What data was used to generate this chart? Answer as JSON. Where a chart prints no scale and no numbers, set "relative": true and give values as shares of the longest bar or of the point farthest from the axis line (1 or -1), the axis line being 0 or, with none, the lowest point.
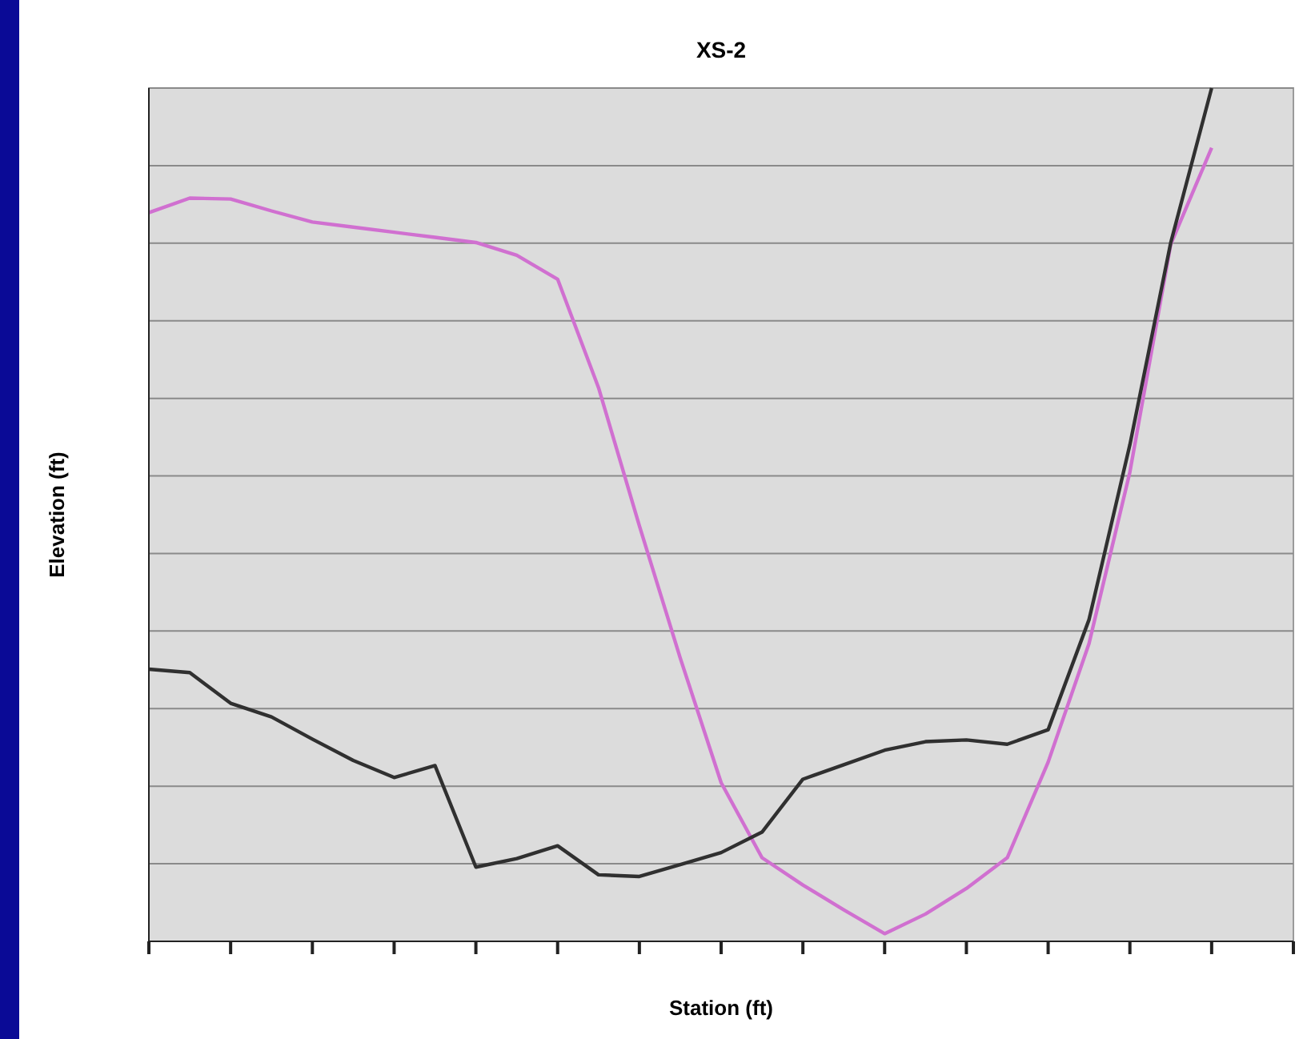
{
  "chart_data": {
    "type": "line",
    "title": "XS-2",
    "xlabel": "Station (ft)",
    "ylabel": "Elevation (ft)",
    "relative": true,
    "grid": "y",
    "marker": "none",
    "line_style": "solid",
    "categories": [
      null,
      null,
      null,
      null,
      null,
      null,
      null,
      null,
      null,
      null,
      null,
      null,
      null,
      null,
      null,
      null,
      null,
      null,
      null,
      null,
      null,
      null,
      null,
      null,
      null,
      null,
      null,
      null,
      null
    ],
    "series": [
      {
        "color": "#d070d0",
        "values": [
          0.854,
          0.871,
          0.87,
          0.856,
          0.843,
          0.837,
          0.831,
          0.825,
          0.819,
          0.804,
          0.776,
          0.649,
          0.487,
          0.332,
          0.186,
          0.098,
          0.066,
          0.037,
          0.009,
          0.032,
          0.062,
          0.098,
          0.21,
          0.349,
          0.55,
          0.817,
          0.93,
          null,
          null
        ]
      },
      {
        "color": "#303030",
        "values": [
          0.319,
          0.315,
          0.279,
          0.263,
          0.237,
          0.212,
          0.192,
          0.206,
          0.087,
          0.097,
          0.112,
          0.078,
          0.076,
          0.09,
          0.104,
          0.128,
          0.19,
          0.207,
          0.224,
          0.234,
          0.236,
          0.231,
          0.248,
          0.377,
          0.582,
          0.819,
          1,
          null,
          null
        ]
      }
    ]
  }
}
